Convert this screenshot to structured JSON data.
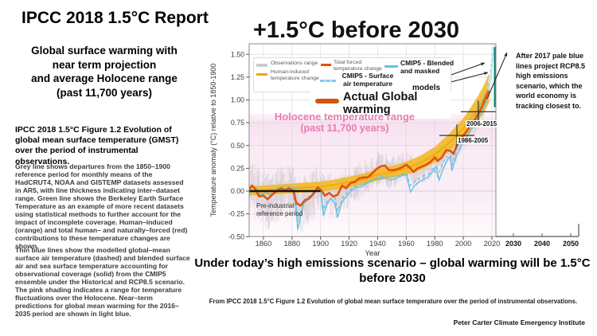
{
  "slide": {
    "title": "IPCC 2018 1.5°C Report",
    "subtitle_lines": [
      "Global surface warming with",
      "near term projection",
      "and average Holocene range",
      "(past 11,700 years)"
    ],
    "figure_heading": "IPCC 2018 1.5°C Figure 1.2 Evolution of global mean surface temperature (GMST) over the period of instrumental observations.",
    "para_grey": "Grey line shows departures from the 1850–1900  reference period for monthly means of the HadCRUT4, NOAA  and GISTEMP datasets assessed in AR5, with line thickness indicating inter–dataset range. Green line shows the Berkeley Earth Surface Temperature as an example of more recent datasets using statistical methods to further account for the impact of incomplete coverage. Human–induced (orange) and total human– and naturally–forced (red) contributions to these temperature changes are shown.",
    "para_blue": "Thin blue lines show the modelled global–mean surface air temperature (dashed) and blended surface air and sea surface temperature accounting for observational coverage (solid) from the CMIP5 ensemble under the Historical and RCP8.5 scenario. The pink shading indicates a range for temperature fluctuations over the Holocene. Near–term predictions for global mean warming for the 2016–2035 period are shown in light blue.",
    "bottom_headline": "Under today’s high emissions scenario – global warming will be 1.5°C before 2030",
    "caption": "From IPCC 2018 1.5°C Figure 1.2 Evolution of global mean surface temperature over the period of instrumental observations.",
    "credit": "Peter Carter Climate Emergency Institute"
  },
  "chart_annotations": {
    "chart_title": "+1.5°C before 2030",
    "after2017_note": "After 2017  pale blue lines project RCP8.5  high emissions  scenario, which the world economy is tracking closest to.",
    "actual_warming_label": "Actual Global\nwarming",
    "holocene_label": "Holocene temperature range",
    "holocene_sublabel": "(past 11,700 years)",
    "preindustrial_label": "Pre-industrial\nreference period",
    "models_label": "models",
    "legend": {
      "observations": "Observations range",
      "human_induced": "Human-induced\ntemperature change",
      "total_forced": "Total forced\ntemperature change",
      "cmip5_surface": "CMIP5 - Surface\nair temperature",
      "cmip5_blended": "CMIP5 - Blended\nand masked"
    }
  },
  "chart_data": {
    "type": "line",
    "title": "+1.5°C before 2030",
    "xlabel": "Year",
    "ylabel": "Temperature anomaly (°C) relative to 1850-1900",
    "xlim": [
      1850,
      2023
    ],
    "ylim": [
      -0.5,
      1.6
    ],
    "xticks": [
      1860,
      1880,
      1900,
      1920,
      1940,
      1960,
      1980,
      2000,
      2020
    ],
    "extended_xticks": [
      2030,
      2040,
      2050
    ],
    "yticks": [
      -0.5,
      -0.25,
      0.0,
      0.25,
      0.5,
      0.75,
      1.0,
      1.25,
      1.5
    ],
    "grid": true,
    "legend_position": "top",
    "holocene_band": {
      "min": -0.48,
      "max": 0.85
    },
    "reference_period": {
      "start": 1850,
      "end": 1900,
      "value": 0.0
    },
    "markers": [
      {
        "label": "1986-2005",
        "year": 1995.5,
        "value": 0.61
      },
      {
        "label": "2006-2015",
        "year": 2010.5,
        "value": 0.87
      }
    ],
    "teal_marker": {
      "year": 2022,
      "from": 0.92,
      "to": 1.58
    },
    "colors": {
      "observations": "#CFCBCB",
      "noise": "#ABA5A9",
      "human_band": "#F2BA2E",
      "human_line": "#F0A800",
      "total_forced": "#E4530A",
      "actual_swatch": "#D4560A",
      "cmip5": "#64C0E6",
      "cmip5_pale": "#B2E1F4",
      "teal": "#0E7C6B",
      "pink_band": "#EFC3DF",
      "pink_text": "#E87CB0",
      "grid": "#E6E4E6"
    },
    "series": [
      {
        "name": "Human-induced temperature change",
        "type": "band",
        "points": [
          [
            1850,
            0.0
          ],
          [
            1870,
            0.02
          ],
          [
            1890,
            0.04
          ],
          [
            1900,
            0.05
          ],
          [
            1910,
            0.07
          ],
          [
            1920,
            0.1
          ],
          [
            1930,
            0.13
          ],
          [
            1940,
            0.18
          ],
          [
            1950,
            0.21
          ],
          [
            1960,
            0.25
          ],
          [
            1970,
            0.31
          ],
          [
            1980,
            0.4
          ],
          [
            1990,
            0.53
          ],
          [
            1995,
            0.61
          ],
          [
            2000,
            0.69
          ],
          [
            2005,
            0.79
          ],
          [
            2010,
            0.9
          ],
          [
            2014,
            1.0
          ],
          [
            2018,
            1.13
          ]
        ],
        "halfwidth": [
          [
            1850,
            0.05
          ],
          [
            1900,
            0.055
          ],
          [
            1950,
            0.065
          ],
          [
            1980,
            0.085
          ],
          [
            2000,
            0.11
          ],
          [
            2018,
            0.16
          ]
        ]
      },
      {
        "name": "Total forced temperature change",
        "type": "line",
        "points": [
          [
            1850,
            0.02
          ],
          [
            1852,
            0.06
          ],
          [
            1854,
            0.03
          ],
          [
            1857,
            -0.06
          ],
          [
            1860,
            -0.05
          ],
          [
            1863,
            -0.09
          ],
          [
            1866,
            -0.04
          ],
          [
            1869,
            0.0
          ],
          [
            1872,
            0.03
          ],
          [
            1875,
            0.01
          ],
          [
            1878,
            0.03
          ],
          [
            1881,
            0.0
          ],
          [
            1883,
            -0.13
          ],
          [
            1886,
            -0.16
          ],
          [
            1889,
            -0.1
          ],
          [
            1892,
            -0.08
          ],
          [
            1895,
            -0.03
          ],
          [
            1898,
            0.04
          ],
          [
            1901,
            0.0
          ],
          [
            1903,
            -0.05
          ],
          [
            1906,
            -0.02
          ],
          [
            1909,
            -0.06
          ],
          [
            1912,
            -0.04
          ],
          [
            1915,
            0.06
          ],
          [
            1918,
            0.03
          ],
          [
            1921,
            0.09
          ],
          [
            1924,
            0.1
          ],
          [
            1927,
            0.14
          ],
          [
            1930,
            0.15
          ],
          [
            1933,
            0.15
          ],
          [
            1936,
            0.19
          ],
          [
            1939,
            0.24
          ],
          [
            1942,
            0.27
          ],
          [
            1945,
            0.28
          ],
          [
            1948,
            0.23
          ],
          [
            1951,
            0.23
          ],
          [
            1954,
            0.24
          ],
          [
            1957,
            0.26
          ],
          [
            1960,
            0.29
          ],
          [
            1963,
            0.25
          ],
          [
            1965,
            0.21
          ],
          [
            1968,
            0.25
          ],
          [
            1971,
            0.27
          ],
          [
            1974,
            0.29
          ],
          [
            1977,
            0.32
          ],
          [
            1980,
            0.37
          ],
          [
            1982,
            0.33
          ],
          [
            1985,
            0.37
          ],
          [
            1988,
            0.45
          ],
          [
            1991,
            0.44
          ],
          [
            1993,
            0.41
          ],
          [
            1996,
            0.52
          ],
          [
            1999,
            0.59
          ],
          [
            2002,
            0.65
          ],
          [
            2005,
            0.72
          ],
          [
            2008,
            0.78
          ],
          [
            2011,
            0.86
          ],
          [
            2014,
            0.96
          ],
          [
            2016,
            1.04
          ],
          [
            2018,
            1.1
          ]
        ]
      },
      {
        "name": "CMIP5 - Blended and masked",
        "type": "line",
        "style": "solid",
        "points": [
          [
            1850,
            -0.02
          ],
          [
            1854,
            0.01
          ],
          [
            1858,
            -0.04
          ],
          [
            1862,
            -0.02
          ],
          [
            1866,
            -0.05
          ],
          [
            1870,
            0.0
          ],
          [
            1874,
            0.03
          ],
          [
            1878,
            0.01
          ],
          [
            1882,
            0.03
          ],
          [
            1884,
            -0.42
          ],
          [
            1886,
            -0.28
          ],
          [
            1888,
            -0.14
          ],
          [
            1891,
            -0.1
          ],
          [
            1894,
            -0.06
          ],
          [
            1897,
            0.0
          ],
          [
            1900,
            0.02
          ],
          [
            1902,
            -0.27
          ],
          [
            1904,
            -0.16
          ],
          [
            1907,
            -0.08
          ],
          [
            1910,
            -0.13
          ],
          [
            1912,
            -0.29
          ],
          [
            1915,
            -0.12
          ],
          [
            1918,
            -0.06
          ],
          [
            1921,
            0.0
          ],
          [
            1925,
            0.04
          ],
          [
            1929,
            0.05
          ],
          [
            1933,
            0.09
          ],
          [
            1937,
            0.13
          ],
          [
            1941,
            0.13
          ],
          [
            1945,
            0.15
          ],
          [
            1949,
            0.12
          ],
          [
            1953,
            0.14
          ],
          [
            1957,
            0.17
          ],
          [
            1960,
            0.18
          ],
          [
            1963,
            -0.01
          ],
          [
            1966,
            0.06
          ],
          [
            1969,
            0.1
          ],
          [
            1972,
            0.13
          ],
          [
            1975,
            0.15
          ],
          [
            1978,
            0.2
          ],
          [
            1981,
            0.27
          ],
          [
            1983,
            0.12
          ],
          [
            1986,
            0.25
          ],
          [
            1989,
            0.35
          ],
          [
            1991,
            0.38
          ],
          [
            1992,
            0.22
          ],
          [
            1995,
            0.38
          ],
          [
            1998,
            0.48
          ],
          [
            2001,
            0.56
          ],
          [
            2004,
            0.64
          ],
          [
            2007,
            0.71
          ],
          [
            2010,
            0.79
          ],
          [
            2013,
            0.88
          ],
          [
            2016,
            0.98
          ],
          [
            2017,
            1.03
          ]
        ],
        "projection": [
          [
            2017,
            1.03
          ],
          [
            2018,
            1.14
          ],
          [
            2019,
            1.22
          ],
          [
            2020,
            1.36
          ],
          [
            2021,
            1.5
          ],
          [
            2022,
            1.6
          ]
        ]
      },
      {
        "name": "CMIP5 - Surface air temperature",
        "type": "line",
        "style": "dashed",
        "points": [
          [
            1850,
            0.01
          ],
          [
            1855,
            0.03
          ],
          [
            1860,
            -0.01
          ],
          [
            1865,
            0.0
          ],
          [
            1870,
            0.03
          ],
          [
            1875,
            0.05
          ],
          [
            1880,
            0.05
          ],
          [
            1884,
            -0.33
          ],
          [
            1887,
            -0.18
          ],
          [
            1890,
            -0.08
          ],
          [
            1895,
            -0.02
          ],
          [
            1900,
            0.04
          ],
          [
            1902,
            -0.2
          ],
          [
            1905,
            -0.1
          ],
          [
            1910,
            -0.07
          ],
          [
            1912,
            -0.22
          ],
          [
            1916,
            -0.06
          ],
          [
            1920,
            0.01
          ],
          [
            1925,
            0.06
          ],
          [
            1930,
            0.08
          ],
          [
            1935,
            0.12
          ],
          [
            1940,
            0.15
          ],
          [
            1945,
            0.17
          ],
          [
            1950,
            0.15
          ],
          [
            1955,
            0.17
          ],
          [
            1960,
            0.2
          ],
          [
            1963,
            0.06
          ],
          [
            1967,
            0.12
          ],
          [
            1971,
            0.16
          ],
          [
            1975,
            0.18
          ],
          [
            1979,
            0.25
          ],
          [
            1982,
            0.16
          ],
          [
            1985,
            0.28
          ],
          [
            1988,
            0.38
          ],
          [
            1991,
            0.34
          ],
          [
            1992,
            0.28
          ],
          [
            1995,
            0.44
          ],
          [
            1998,
            0.55
          ],
          [
            2001,
            0.62
          ],
          [
            2004,
            0.7
          ],
          [
            2007,
            0.79
          ],
          [
            2010,
            0.89
          ],
          [
            2013,
            0.99
          ],
          [
            2016,
            1.08
          ],
          [
            2017,
            1.12
          ]
        ],
        "projection": [
          [
            2017,
            1.12
          ],
          [
            2018,
            1.24
          ],
          [
            2019,
            1.34
          ],
          [
            2020,
            1.46
          ],
          [
            2021,
            1.58
          ],
          [
            2021.6,
            1.63
          ]
        ]
      },
      {
        "name": "Observations range",
        "type": "noise",
        "amplitude": [
          [
            1850,
            0.27
          ],
          [
            1880,
            0.25
          ],
          [
            1900,
            0.22
          ],
          [
            1930,
            0.17
          ],
          [
            1950,
            0.15
          ],
          [
            1980,
            0.13
          ],
          [
            2017,
            0.12
          ]
        ]
      }
    ]
  }
}
